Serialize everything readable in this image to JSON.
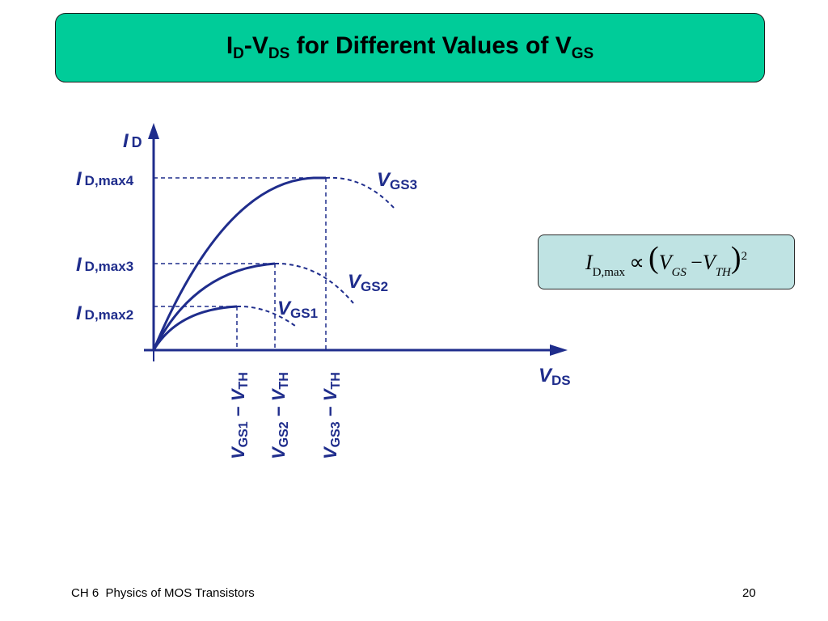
{
  "title": {
    "I": "I",
    "D": "D",
    "dash": "-",
    "V": "V",
    "DS": "DS",
    "middle": " for Different Values of ",
    "V2": "V",
    "GS": "GS"
  },
  "diagram": {
    "y_axis": {
      "I": "I",
      "sub": "D"
    },
    "x_axis": {
      "V": "V",
      "sub": "DS"
    },
    "y_labels": [
      {
        "I": "I",
        "sub": "D,max4"
      },
      {
        "I": "I",
        "sub": "D,max3"
      },
      {
        "I": "I",
        "sub": "D,max2"
      }
    ],
    "curve_labels": [
      {
        "V": "V",
        "sub": "GS3"
      },
      {
        "V": "V",
        "sub": "GS2"
      },
      {
        "V": "V",
        "sub": "GS1"
      }
    ],
    "x_markers": [
      {
        "V": "V",
        "sub": "GS1",
        "minus": " − ",
        "V2": "V",
        "sub2": "TH"
      },
      {
        "V": "V",
        "sub": "GS2",
        "minus": " − ",
        "V2": "V",
        "sub2": "TH"
      },
      {
        "V": "V",
        "sub": "GS3",
        "minus": " − ",
        "V2": "V",
        "sub2": "TH"
      }
    ]
  },
  "formula": {
    "I": "I",
    "I_sub": "D,max",
    "prop": "∝",
    "open": "(",
    "V1": "V",
    "V1_sub": "GS",
    "minus": "−",
    "V2": "V",
    "V2_sub": "TH",
    "close": ")",
    "power": "2"
  },
  "footer": {
    "left": "CH 6  Physics of MOS Transistors",
    "page": "20"
  },
  "colors": {
    "title_bg": "#00cc99",
    "formula_bg": "#bfe3e3",
    "diagram": "#1f2d8c"
  }
}
